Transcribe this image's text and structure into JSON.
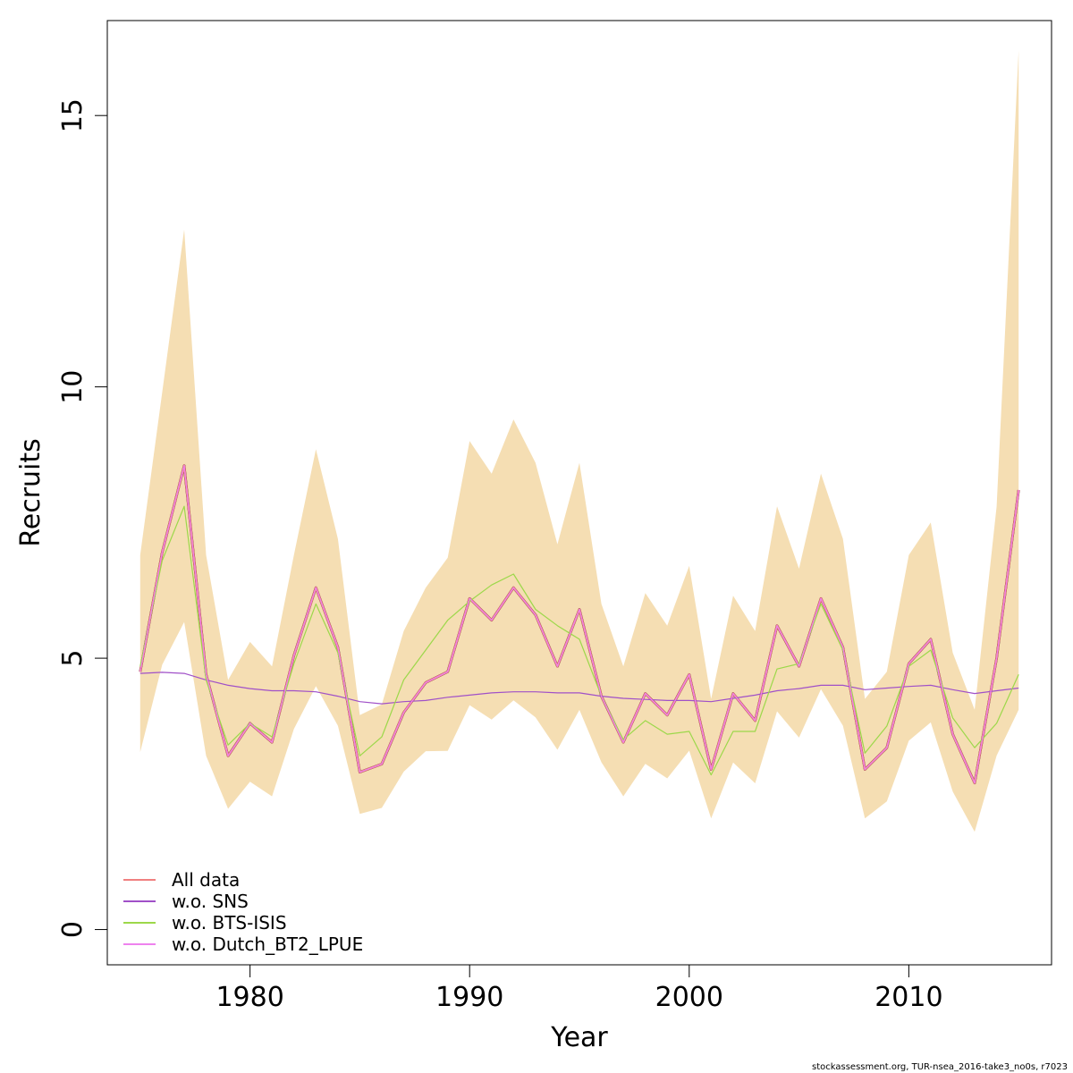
{
  "chart_data": {
    "type": "line",
    "xlabel": "Year",
    "ylabel": "Recruits",
    "xlim": [
      1973.5,
      2016.5
    ],
    "ylim": [
      -0.65,
      16.75
    ],
    "x_ticks": [
      1980,
      1990,
      2000,
      2010
    ],
    "y_ticks": [
      0,
      5,
      10,
      15
    ],
    "grid": false,
    "legend_position": "bottom-left",
    "x": [
      1975,
      1976,
      1977,
      1978,
      1979,
      1980,
      1981,
      1982,
      1983,
      1984,
      1985,
      1986,
      1987,
      1988,
      1989,
      1990,
      1991,
      1992,
      1993,
      1994,
      1995,
      1996,
      1997,
      1998,
      1999,
      2000,
      2001,
      2002,
      2003,
      2004,
      2005,
      2006,
      2007,
      2008,
      2009,
      2010,
      2011,
      2012,
      2013,
      2014,
      2015
    ],
    "band": {
      "color": "#f5deb3",
      "upper": [
        6.9,
        9.9,
        12.9,
        6.9,
        4.6,
        5.3,
        4.85,
        6.9,
        8.85,
        7.2,
        3.95,
        4.15,
        5.5,
        6.3,
        6.85,
        9.0,
        8.4,
        9.4,
        8.6,
        7.1,
        8.6,
        6.0,
        4.85,
        6.2,
        5.6,
        6.7,
        4.25,
        6.15,
        5.5,
        7.8,
        6.65,
        8.4,
        7.2,
        4.25,
        4.75,
        6.9,
        7.5,
        5.1,
        4.05,
        7.8,
        16.2
      ]
    },
    "series": [
      {
        "name": "All data",
        "color": "#f08080",
        "width": 2.5,
        "values": [
          4.75,
          6.95,
          8.55,
          4.7,
          3.2,
          3.8,
          3.45,
          5.05,
          6.3,
          5.2,
          2.9,
          3.05,
          4.0,
          4.55,
          4.75,
          6.1,
          5.7,
          6.3,
          5.8,
          4.85,
          5.9,
          4.3,
          3.45,
          4.35,
          3.95,
          4.7,
          2.95,
          4.35,
          3.85,
          5.6,
          4.85,
          6.1,
          5.2,
          2.95,
          3.35,
          4.9,
          5.35,
          3.6,
          2.7,
          5.0,
          8.1
        ]
      },
      {
        "name": "w.o. SNS",
        "color": "#a050c8",
        "width": 1.2,
        "values": [
          4.72,
          4.74,
          4.72,
          4.6,
          4.5,
          4.44,
          4.4,
          4.4,
          4.38,
          4.3,
          4.2,
          4.16,
          4.2,
          4.22,
          4.28,
          4.32,
          4.36,
          4.38,
          4.38,
          4.36,
          4.36,
          4.3,
          4.26,
          4.24,
          4.22,
          4.22,
          4.2,
          4.26,
          4.32,
          4.4,
          4.44,
          4.5,
          4.5,
          4.42,
          4.45,
          4.48,
          4.5,
          4.42,
          4.35,
          4.4,
          4.45
        ]
      },
      {
        "name": "w.o. BTS-ISIS",
        "color": "#9cd84a",
        "width": 1.2,
        "values": [
          4.85,
          6.8,
          7.8,
          4.6,
          3.4,
          3.8,
          3.55,
          4.9,
          6.0,
          5.1,
          3.2,
          3.55,
          4.6,
          5.15,
          5.7,
          6.05,
          6.35,
          6.55,
          5.9,
          5.6,
          5.35,
          4.3,
          3.5,
          3.85,
          3.6,
          3.65,
          2.85,
          3.65,
          3.65,
          4.8,
          4.9,
          6.0,
          5.15,
          3.25,
          3.75,
          4.85,
          5.15,
          3.9,
          3.35,
          3.8,
          4.7
        ]
      },
      {
        "name": "w.o. Dutch_BT2_LPUE",
        "color": "#ee82ee",
        "width": 1.2,
        "values": [
          4.75,
          6.95,
          8.55,
          4.7,
          3.2,
          3.8,
          3.45,
          5.05,
          6.3,
          5.2,
          2.9,
          3.05,
          4.0,
          4.55,
          4.75,
          6.1,
          5.7,
          6.3,
          5.8,
          4.85,
          5.9,
          4.3,
          3.45,
          4.35,
          3.95,
          4.7,
          2.95,
          4.35,
          3.85,
          5.6,
          4.85,
          6.1,
          5.2,
          2.95,
          3.35,
          4.9,
          5.35,
          3.6,
          2.7,
          5.0,
          8.1
        ]
      }
    ],
    "main_line": {
      "color": "#4a0030",
      "width": 2.8
    }
  },
  "footer": "stockassessment.org, TUR-nsea_2016-take3_no0s, r7023"
}
